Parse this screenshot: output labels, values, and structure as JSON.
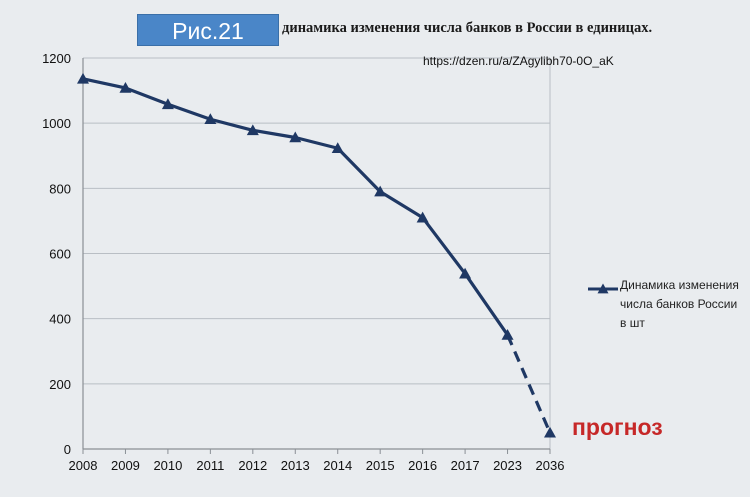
{
  "figure_label": "Рис.21",
  "title": "динамика изменения числа банков в России в единицах.",
  "source_url": "https://dzen.ru/a/ZAgylibh70-0O_aK",
  "forecast_label": "прогноз",
  "colors": {
    "series": "#1f3864",
    "forecast_label": "#c62828",
    "badge": "#4a86c8",
    "grid": "#b9bec4",
    "background": "#e9ecef"
  },
  "chart_data": {
    "type": "line",
    "title": "динамика изменения числа банков в России в единицах.",
    "xlabel": "",
    "ylabel": "",
    "categories": [
      "2008",
      "2009",
      "2010",
      "2011",
      "2012",
      "2013",
      "2014",
      "2015",
      "2016",
      "2017",
      "2023",
      "2036"
    ],
    "series": [
      {
        "name": "Динамика изменения числа банков России в шт",
        "values": [
          1136,
          1108,
          1058,
          1012,
          978,
          956,
          923,
          790,
          710,
          538,
          350,
          50
        ],
        "forecast_from_index": 10
      }
    ],
    "ylim": [
      0,
      1200
    ],
    "yticks": [
      0,
      200,
      400,
      600,
      800,
      1000,
      1200
    ],
    "grid": true,
    "legend": "right"
  }
}
